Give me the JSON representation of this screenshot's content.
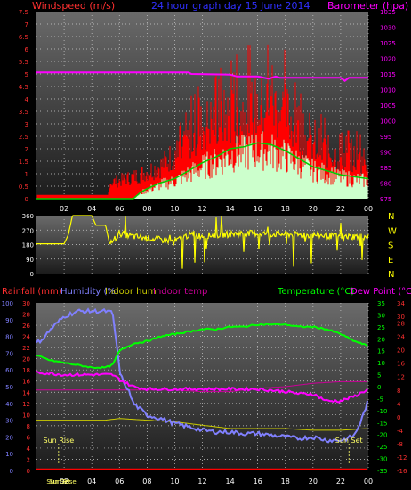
{
  "header": {
    "left_title": "Windspeed (m/s)",
    "center_title": "24 hour graph day  15 June 2014",
    "right_title": "Barometer (hpa)"
  },
  "colors": {
    "background": "#000000",
    "plot_top": "#6a6a6a",
    "plot_bottom": "#1c1c1c",
    "grid": "#d0d0d0",
    "wind_gust": "#ff0000",
    "wind_avg": "#ccffcc",
    "wind_avg_line": "#00cc00",
    "barometer": "#ff00ff",
    "direction": "#ffff00",
    "rain": "#ff0000",
    "humidity": "#8080ff",
    "indoor_hum": "#cccc00",
    "indoor_temp": "#cc0099",
    "temperature": "#00ff00",
    "dewpoint": "#ff00ff",
    "label_red": "#ff3030",
    "label_white": "#ffffff"
  },
  "chart_data": [
    {
      "type": "area",
      "name": "wind",
      "left_axis": {
        "label": "Windspeed (m/s)",
        "ticks": [
          "0",
          "0.5",
          "1",
          "1.5",
          "2",
          "2.5",
          "3",
          "3.5",
          "4",
          "4.5",
          "5",
          "5.5",
          "6",
          "6.5",
          "7",
          "7.5"
        ],
        "range": [
          0,
          7.5
        ]
      },
      "right_axis": {
        "label": "Barometer (hpa)",
        "ticks": [
          "975",
          "980",
          "985",
          "990",
          "995",
          "1000",
          "1005",
          "1010",
          "1015",
          "1020",
          "1025",
          "1030",
          "1035"
        ],
        "range": [
          975,
          1035
        ]
      },
      "x_ticks": [
        "02",
        "04",
        "06",
        "08",
        "10",
        "12",
        "14",
        "16",
        "18",
        "20",
        "22",
        "00"
      ],
      "x_range": [
        0,
        24
      ],
      "gust_envelope": [
        [
          0,
          0.15
        ],
        [
          5.2,
          0.15
        ],
        [
          5.25,
          0.9
        ],
        [
          6,
          1.0
        ],
        [
          7,
          1.2
        ],
        [
          8,
          1.5
        ],
        [
          9,
          1.8
        ],
        [
          10,
          2.5
        ],
        [
          10.5,
          2.4
        ],
        [
          11,
          3.3
        ],
        [
          12,
          4.0
        ],
        [
          13,
          4.4
        ],
        [
          14,
          4.5
        ],
        [
          15,
          4.8
        ],
        [
          16,
          5.0
        ],
        [
          17,
          5.2
        ],
        [
          18,
          4.8
        ],
        [
          19,
          3.6
        ],
        [
          20,
          3.0
        ],
        [
          21,
          2.6
        ],
        [
          22,
          2.3
        ],
        [
          23,
          2.2
        ],
        [
          24,
          2.1
        ]
      ],
      "avg_envelope": [
        [
          0,
          0
        ],
        [
          7,
          0
        ],
        [
          7.5,
          0.3
        ],
        [
          8,
          0.5
        ],
        [
          9,
          0.8
        ],
        [
          10,
          1.0
        ],
        [
          11,
          1.4
        ],
        [
          12,
          1.8
        ],
        [
          13,
          2.1
        ],
        [
          14,
          2.5
        ],
        [
          15,
          2.6
        ],
        [
          16,
          2.8
        ],
        [
          17,
          2.7
        ],
        [
          18,
          2.4
        ],
        [
          19,
          2.0
        ],
        [
          20,
          1.6
        ],
        [
          21,
          1.4
        ],
        [
          22,
          1.2
        ],
        [
          23,
          1.1
        ],
        [
          24,
          1.0
        ]
      ],
      "barometer": [
        [
          0,
          1015.5
        ],
        [
          11,
          1015.5
        ],
        [
          11.2,
          1015
        ],
        [
          14,
          1014.8
        ],
        [
          14.5,
          1014.2
        ],
        [
          16,
          1014.2
        ],
        [
          16.8,
          1013.5
        ],
        [
          17.3,
          1014.2
        ],
        [
          17.6,
          1013.8
        ],
        [
          18,
          1013.8
        ],
        [
          20,
          1013.8
        ],
        [
          22,
          1013.8
        ],
        [
          22.3,
          1012.8
        ],
        [
          22.6,
          1013.8
        ],
        [
          24,
          1013.8
        ]
      ]
    },
    {
      "type": "line",
      "name": "wind_direction",
      "left_axis": {
        "ticks": [
          "0",
          "90",
          "180",
          "270",
          "360"
        ],
        "range": [
          0,
          360
        ]
      },
      "right_labels": [
        "N",
        "W",
        "S",
        "E",
        "N"
      ],
      "series": [
        [
          0,
          185
        ],
        [
          2,
          185
        ],
        [
          2.3,
          240
        ],
        [
          2.6,
          360
        ],
        [
          4,
          360
        ],
        [
          4.3,
          300
        ],
        [
          5,
          300
        ],
        [
          5.3,
          180
        ],
        [
          6,
          250
        ],
        [
          7,
          230
        ],
        [
          8,
          220
        ],
        [
          9,
          210
        ],
        [
          10,
          200
        ],
        [
          11,
          240
        ],
        [
          12,
          235
        ],
        [
          13,
          240
        ],
        [
          14,
          245
        ],
        [
          15,
          250
        ],
        [
          16,
          250
        ],
        [
          17,
          245
        ],
        [
          18,
          245
        ],
        [
          19,
          240
        ],
        [
          20,
          240
        ],
        [
          21,
          235
        ],
        [
          22,
          230
        ],
        [
          23,
          230
        ],
        [
          24,
          230
        ]
      ]
    },
    {
      "type": "line",
      "name": "temperature_humidity",
      "header_labels": [
        "Rainfall (mm)",
        "Humidity (%)",
        "Indoor hum",
        "Indoor temp",
        "Temperature (°C)",
        "Dew Point (°C)"
      ],
      "humidity_axis": {
        "ticks": [
          "0",
          "10",
          "20",
          "30",
          "40",
          "50",
          "60",
          "70",
          "80",
          "90",
          "100"
        ],
        "range": [
          0,
          100
        ]
      },
      "rain_axis": {
        "ticks": [
          "0",
          "2",
          "4",
          "6",
          "8",
          "10",
          "12",
          "14",
          "16",
          "18",
          "20",
          "22",
          "24",
          "26",
          "28",
          "30"
        ],
        "range": [
          0,
          30
        ]
      },
      "temp_axis": {
        "ticks": [
          "-35",
          "-30",
          "-25",
          "-20",
          "-15",
          "-10",
          "-5",
          "0",
          "5",
          "10",
          "15",
          "20",
          "25",
          "30",
          "35"
        ],
        "range": [
          -35,
          35
        ]
      },
      "indoor_axis": {
        "ticks": [
          "-16",
          "-12",
          "-8",
          "-4",
          "0",
          "4",
          "8",
          "12",
          "16",
          "20",
          "24",
          "28",
          "30",
          "34"
        ],
        "range": [
          -16,
          34
        ]
      },
      "x_ticks": [
        "02",
        "04",
        "06",
        "08",
        "10",
        "12",
        "14",
        "16",
        "18",
        "20",
        "22",
        "00"
      ],
      "sun_labels": [
        "Sun Rise",
        "Sun Set",
        "Sun Rise"
      ],
      "sunrise": 1.6,
      "sunset": 22.6,
      "rain": [
        [
          0,
          0.2
        ],
        [
          24,
          0.2
        ]
      ],
      "humidity": [
        [
          0,
          76
        ],
        [
          0.5,
          79
        ],
        [
          1,
          84
        ],
        [
          2,
          92
        ],
        [
          3,
          95
        ],
        [
          4,
          95
        ],
        [
          5,
          95
        ],
        [
          5.5,
          94
        ],
        [
          5.8,
          75
        ],
        [
          6,
          60
        ],
        [
          6.3,
          52
        ],
        [
          6.6,
          49
        ],
        [
          7,
          40
        ],
        [
          8,
          33
        ],
        [
          9,
          31
        ],
        [
          10,
          28
        ],
        [
          11,
          26
        ],
        [
          12,
          24
        ],
        [
          13,
          23
        ],
        [
          14,
          23
        ],
        [
          15,
          22
        ],
        [
          16,
          22
        ],
        [
          17,
          21
        ],
        [
          18,
          20
        ],
        [
          19,
          19
        ],
        [
          20,
          20
        ],
        [
          21,
          18
        ],
        [
          22,
          18
        ],
        [
          22.5,
          19
        ],
        [
          23,
          21
        ],
        [
          23.5,
          30
        ],
        [
          24,
          42
        ]
      ],
      "temperature": [
        [
          0,
          13
        ],
        [
          1,
          11
        ],
        [
          2,
          10
        ],
        [
          3,
          9
        ],
        [
          4,
          8
        ],
        [
          5,
          8
        ],
        [
          5.5,
          9
        ],
        [
          6,
          15
        ],
        [
          7,
          18
        ],
        [
          8,
          19
        ],
        [
          9,
          21
        ],
        [
          10,
          22
        ],
        [
          11,
          23
        ],
        [
          12,
          24
        ],
        [
          13,
          24
        ],
        [
          14,
          25
        ],
        [
          15,
          25
        ],
        [
          16,
          26
        ],
        [
          17,
          26
        ],
        [
          18,
          26
        ],
        [
          19,
          25
        ],
        [
          20,
          25
        ],
        [
          21,
          24
        ],
        [
          22,
          22
        ],
        [
          23,
          19
        ],
        [
          24,
          17
        ]
      ],
      "dewpoint": [
        [
          0,
          6
        ],
        [
          2,
          5
        ],
        [
          4,
          5
        ],
        [
          5.5,
          5
        ],
        [
          6,
          3
        ],
        [
          7,
          0
        ],
        [
          8,
          -1
        ],
        [
          10,
          -1
        ],
        [
          12,
          -1
        ],
        [
          14,
          -1
        ],
        [
          16,
          -1
        ],
        [
          18,
          -2
        ],
        [
          19,
          -3
        ],
        [
          20,
          -3
        ],
        [
          21,
          -6
        ],
        [
          22,
          -6
        ],
        [
          23,
          -4
        ],
        [
          24,
          -1
        ]
      ],
      "indoor_hum": [
        [
          0,
          30
        ],
        [
          5,
          30
        ],
        [
          6,
          31
        ],
        [
          8,
          30
        ],
        [
          10,
          29
        ],
        [
          12,
          27
        ],
        [
          14,
          25
        ],
        [
          16,
          25
        ],
        [
          18,
          25
        ],
        [
          20,
          24
        ],
        [
          22,
          24
        ],
        [
          24,
          25
        ]
      ],
      "indoor_temp": [
        [
          0,
          48
        ],
        [
          4,
          48
        ],
        [
          6,
          48
        ],
        [
          8,
          48
        ],
        [
          10,
          48
        ],
        [
          12,
          47
        ],
        [
          14,
          47
        ],
        [
          16,
          49
        ],
        [
          18,
          50
        ],
        [
          20,
          52
        ],
        [
          22,
          53
        ],
        [
          24,
          53
        ]
      ]
    }
  ]
}
